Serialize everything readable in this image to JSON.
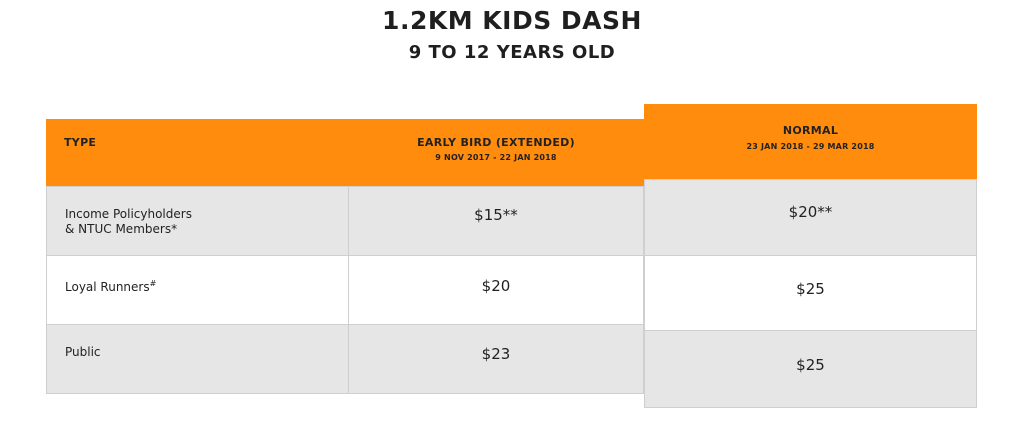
{
  "header": {
    "title": "1.2KM KIDS DASH",
    "subtitle": "9 TO 12 YEARS OLD"
  },
  "table": {
    "columns": [
      {
        "label": "TYPE",
        "sub": ""
      },
      {
        "label": "EARLY BIRD (EXTENDED)",
        "sub": "9 NOV 2017 - 22 JAN 2018"
      },
      {
        "label": "NORMAL",
        "sub": "23 JAN 2018 - 29 MAR 2018"
      }
    ],
    "rows": [
      {
        "label_line1": "Income Policyholders",
        "label_line2": "& NTUC Members*",
        "early": "$15**",
        "normal": "$20**"
      },
      {
        "label_line1": "Loyal Runners",
        "label_sup": "#",
        "early": "$20",
        "normal": "$25"
      },
      {
        "label_line1": "Public",
        "early": "$23",
        "normal": "$25"
      }
    ]
  },
  "colors": {
    "header_orange": "#ff8c0c",
    "row_grey": "#e6e6e7",
    "row_white": "#ffffff"
  }
}
